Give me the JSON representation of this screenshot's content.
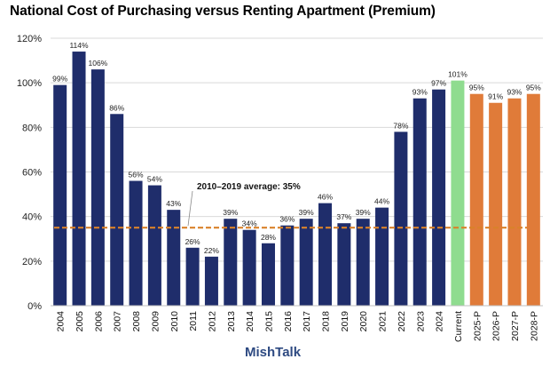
{
  "chart_data": {
    "type": "bar",
    "title": "National Cost of Purchasing versus Renting Apartment (Premium)",
    "categories": [
      "2004",
      "2005",
      "2006",
      "2007",
      "2008",
      "2009",
      "2010",
      "2011",
      "2012",
      "2013",
      "2014",
      "2015",
      "2016",
      "2017",
      "2018",
      "2019",
      "2020",
      "2021",
      "2022",
      "2023",
      "2024",
      "Current",
      "2025-P",
      "2026-P",
      "2027-P",
      "2028-P"
    ],
    "values": [
      99,
      114,
      106,
      86,
      56,
      54,
      43,
      26,
      22,
      39,
      34,
      28,
      36,
      39,
      46,
      37,
      39,
      44,
      78,
      93,
      97,
      101,
      95,
      91,
      93,
      95
    ],
    "labels": [
      "99%",
      "114%",
      "106%",
      "86%",
      "56%",
      "54%",
      "43%",
      "26%",
      "22%",
      "39%",
      "34%",
      "28%",
      "36%",
      "39%",
      "46%",
      "37%",
      "39%",
      "44%",
      "78%",
      "93%",
      "97%",
      "101%",
      "95%",
      "91%",
      "93%",
      "95%"
    ],
    "groups": [
      "historical",
      "historical",
      "historical",
      "historical",
      "historical",
      "historical",
      "historical",
      "historical",
      "historical",
      "historical",
      "historical",
      "historical",
      "historical",
      "historical",
      "historical",
      "historical",
      "historical",
      "historical",
      "historical",
      "historical",
      "historical",
      "current",
      "projected",
      "projected",
      "projected",
      "projected"
    ],
    "colors": {
      "historical": "#1f2d6b",
      "current": "#8fdc8f",
      "projected": "#e07b39",
      "average_line": "#d9822b"
    },
    "ylim": [
      0,
      120
    ],
    "yticks": [
      0,
      20,
      40,
      60,
      80,
      100,
      120
    ],
    "ytick_labels": [
      "0%",
      "20%",
      "40%",
      "60%",
      "80%",
      "100%",
      "120%"
    ],
    "average": {
      "value": 35,
      "label": "2010–2019 average: 35%"
    },
    "watermark": "MishTalk"
  }
}
